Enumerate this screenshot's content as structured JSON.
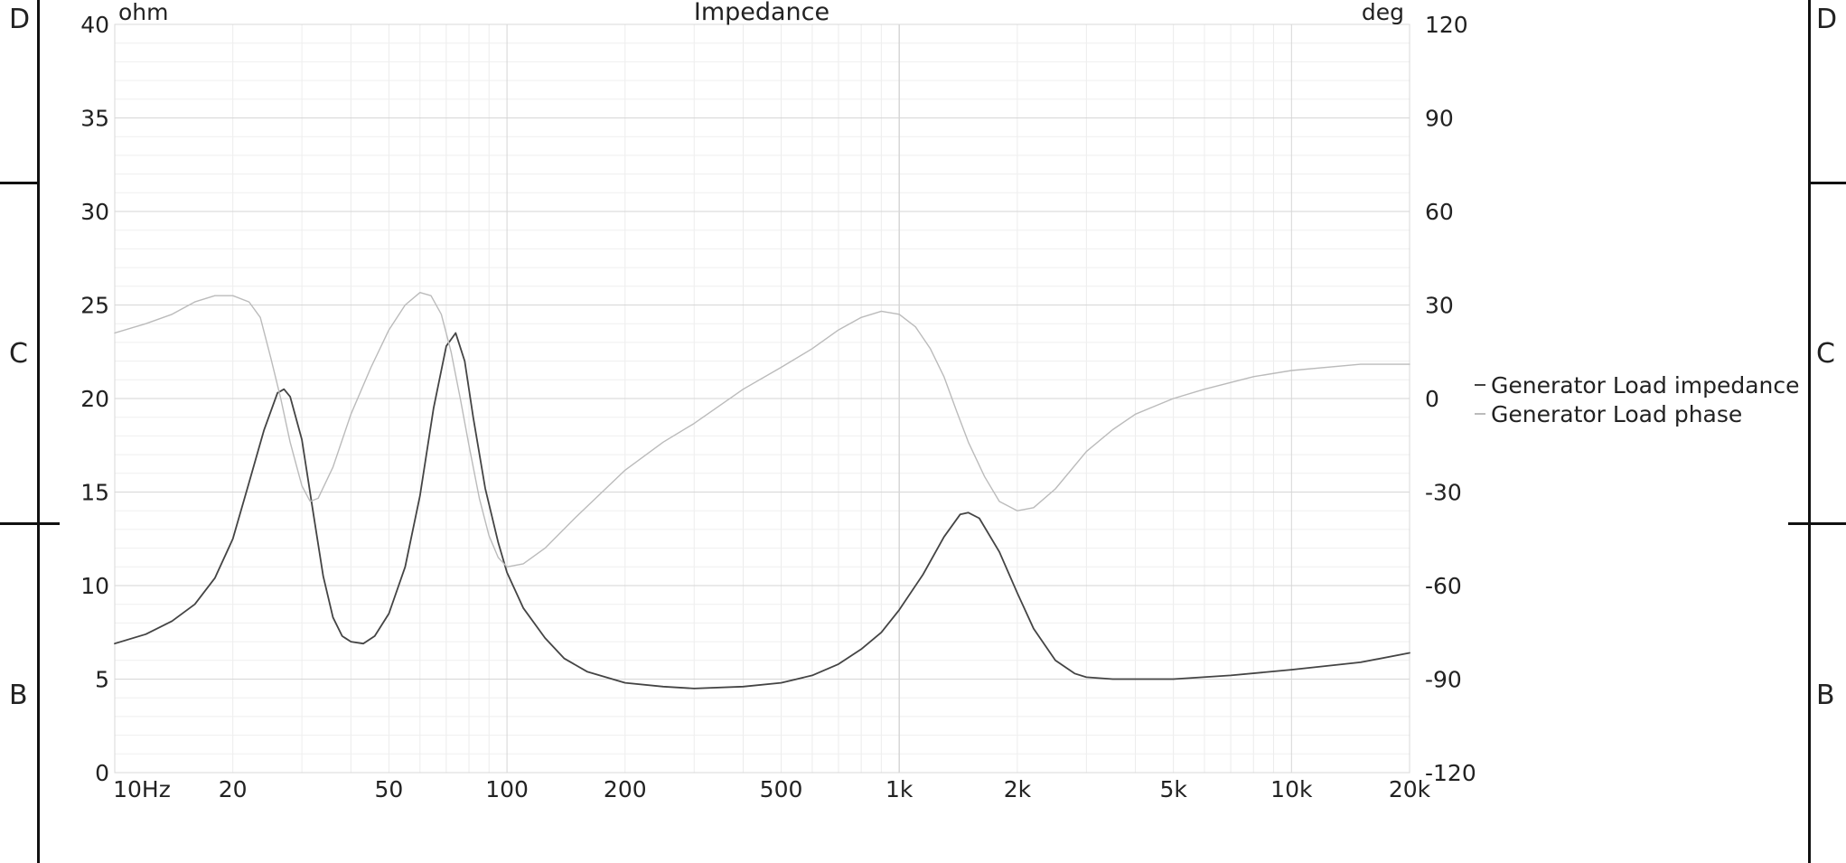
{
  "frame": {
    "top_left": "D",
    "top_right": "D",
    "mid_left": "C",
    "mid_right": "C",
    "bottom_left": "B",
    "bottom_right": "B"
  },
  "chart_data": {
    "type": "line",
    "title": "Impedance",
    "ylabel_left": "ohm",
    "ylabel_right": "deg",
    "x_scale": "log",
    "xlim": [
      10,
      20000
    ],
    "ylim_left": [
      0,
      40
    ],
    "ylim_right": [
      -120,
      120
    ],
    "grid": true,
    "legend_position": "right",
    "x_ticks": [
      {
        "value": 10,
        "label": "10Hz"
      },
      {
        "value": 20,
        "label": "20"
      },
      {
        "value": 50,
        "label": "50"
      },
      {
        "value": 100,
        "label": "100"
      },
      {
        "value": 200,
        "label": "200"
      },
      {
        "value": 500,
        "label": "500"
      },
      {
        "value": 1000,
        "label": "1k"
      },
      {
        "value": 2000,
        "label": "2k"
      },
      {
        "value": 5000,
        "label": "5k"
      },
      {
        "value": 10000,
        "label": "10k"
      },
      {
        "value": 20000,
        "label": "20k"
      }
    ],
    "y_left_ticks": [
      {
        "value": 0,
        "label": "0"
      },
      {
        "value": 5,
        "label": "5"
      },
      {
        "value": 10,
        "label": "10"
      },
      {
        "value": 15,
        "label": "15"
      },
      {
        "value": 20,
        "label": "20"
      },
      {
        "value": 25,
        "label": "25"
      },
      {
        "value": 30,
        "label": "30"
      },
      {
        "value": 35,
        "label": "35"
      },
      {
        "value": 40,
        "label": "40"
      }
    ],
    "y_right_ticks": [
      {
        "value": -120,
        "label": "-120"
      },
      {
        "value": -90,
        "label": "-90"
      },
      {
        "value": -60,
        "label": "-60"
      },
      {
        "value": -30,
        "label": "-30"
      },
      {
        "value": 0,
        "label": "0"
      },
      {
        "value": 30,
        "label": "30"
      },
      {
        "value": 60,
        "label": "60"
      },
      {
        "value": 90,
        "label": "90"
      },
      {
        "value": 120,
        "label": "120"
      }
    ],
    "series": [
      {
        "name": "Generator Load impedance",
        "axis": "left",
        "color": "#444444",
        "points": [
          [
            10,
            6.9
          ],
          [
            12,
            7.4
          ],
          [
            14,
            8.1
          ],
          [
            16,
            9.0
          ],
          [
            18,
            10.4
          ],
          [
            20,
            12.5
          ],
          [
            22,
            15.5
          ],
          [
            24,
            18.3
          ],
          [
            26,
            20.3
          ],
          [
            27,
            20.5
          ],
          [
            28,
            20.1
          ],
          [
            30,
            17.8
          ],
          [
            32,
            14.0
          ],
          [
            34,
            10.5
          ],
          [
            36,
            8.3
          ],
          [
            38,
            7.3
          ],
          [
            40,
            7.0
          ],
          [
            43,
            6.9
          ],
          [
            46,
            7.3
          ],
          [
            50,
            8.5
          ],
          [
            55,
            11.0
          ],
          [
            60,
            14.8
          ],
          [
            65,
            19.5
          ],
          [
            70,
            22.8
          ],
          [
            74,
            23.5
          ],
          [
            78,
            22.0
          ],
          [
            82,
            19.0
          ],
          [
            88,
            15.2
          ],
          [
            95,
            12.3
          ],
          [
            100,
            10.7
          ],
          [
            110,
            8.8
          ],
          [
            125,
            7.2
          ],
          [
            140,
            6.1
          ],
          [
            160,
            5.4
          ],
          [
            200,
            4.8
          ],
          [
            250,
            4.6
          ],
          [
            300,
            4.5
          ],
          [
            400,
            4.6
          ],
          [
            500,
            4.8
          ],
          [
            600,
            5.2
          ],
          [
            700,
            5.8
          ],
          [
            800,
            6.6
          ],
          [
            900,
            7.5
          ],
          [
            1000,
            8.7
          ],
          [
            1150,
            10.6
          ],
          [
            1300,
            12.6
          ],
          [
            1430,
            13.8
          ],
          [
            1500,
            13.9
          ],
          [
            1600,
            13.6
          ],
          [
            1800,
            11.8
          ],
          [
            2000,
            9.6
          ],
          [
            2200,
            7.7
          ],
          [
            2500,
            6.0
          ],
          [
            2800,
            5.3
          ],
          [
            3000,
            5.1
          ],
          [
            3500,
            5.0
          ],
          [
            5000,
            5.0
          ],
          [
            7000,
            5.2
          ],
          [
            10000,
            5.5
          ],
          [
            15000,
            5.9
          ],
          [
            20000,
            6.4
          ]
        ]
      },
      {
        "name": "Generator Load phase",
        "axis": "right",
        "color": "#bbbbbb",
        "points": [
          [
            10,
            21
          ],
          [
            12,
            24
          ],
          [
            14,
            27
          ],
          [
            16,
            31
          ],
          [
            18,
            33
          ],
          [
            20,
            33
          ],
          [
            22,
            31
          ],
          [
            23.5,
            26
          ],
          [
            25,
            13
          ],
          [
            26.5,
            0
          ],
          [
            28,
            -14
          ],
          [
            30,
            -28
          ],
          [
            31.5,
            -33
          ],
          [
            33,
            -32
          ],
          [
            36,
            -22
          ],
          [
            40,
            -5
          ],
          [
            45,
            10
          ],
          [
            50,
            22
          ],
          [
            55,
            30
          ],
          [
            60,
            34
          ],
          [
            64,
            33
          ],
          [
            68,
            27
          ],
          [
            72,
            15
          ],
          [
            76,
            0
          ],
          [
            80,
            -15
          ],
          [
            85,
            -32
          ],
          [
            90,
            -44
          ],
          [
            95,
            -51
          ],
          [
            100,
            -54
          ],
          [
            110,
            -53
          ],
          [
            125,
            -48
          ],
          [
            150,
            -38
          ],
          [
            200,
            -23
          ],
          [
            250,
            -14
          ],
          [
            300,
            -8
          ],
          [
            400,
            3
          ],
          [
            500,
            10
          ],
          [
            600,
            16
          ],
          [
            700,
            22
          ],
          [
            800,
            26
          ],
          [
            900,
            28
          ],
          [
            1000,
            27
          ],
          [
            1100,
            23
          ],
          [
            1200,
            16
          ],
          [
            1300,
            7
          ],
          [
            1400,
            -4
          ],
          [
            1500,
            -14
          ],
          [
            1650,
            -25
          ],
          [
            1800,
            -33
          ],
          [
            2000,
            -36
          ],
          [
            2200,
            -35
          ],
          [
            2500,
            -29
          ],
          [
            3000,
            -17
          ],
          [
            3500,
            -10
          ],
          [
            4000,
            -5
          ],
          [
            5000,
            0
          ],
          [
            6000,
            3
          ],
          [
            8000,
            7
          ],
          [
            10000,
            9
          ],
          [
            15000,
            11
          ],
          [
            20000,
            11
          ]
        ]
      }
    ]
  }
}
